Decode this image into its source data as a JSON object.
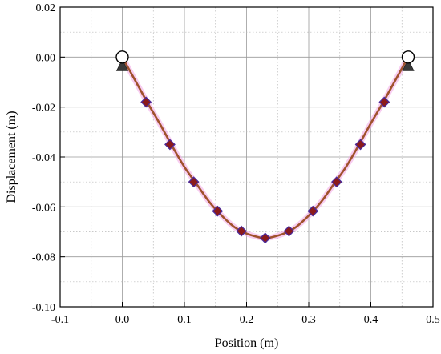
{
  "chart_data": {
    "type": "line",
    "title": "",
    "xlabel": "Position (m)",
    "ylabel": "Displacement (m)",
    "xlim": [
      -0.1,
      0.5
    ],
    "ylim": [
      -0.1,
      0.02
    ],
    "xticks": [
      -0.1,
      0.0,
      0.1,
      0.2,
      0.3,
      0.4,
      0.5
    ],
    "xtick_labels": [
      "-0.1",
      "0.0",
      "0.1",
      "0.2",
      "0.3",
      "0.4",
      "0.5"
    ],
    "yticks": [
      0.02,
      0.0,
      -0.02,
      -0.04,
      -0.06,
      -0.08,
      -0.1
    ],
    "ytick_labels": [
      "0.02",
      "0.00",
      "-0.02",
      "-0.04",
      "-0.06",
      "-0.08",
      "-0.10"
    ],
    "grid": true,
    "legend": "none",
    "series": [
      {
        "style": "curve",
        "color": "#a0522d",
        "x": [
          0.0,
          0.02,
          0.04,
          0.06,
          0.08,
          0.1,
          0.12,
          0.14,
          0.16,
          0.18,
          0.2,
          0.22,
          0.23,
          0.24,
          0.26,
          0.28,
          0.3,
          0.32,
          0.34,
          0.36,
          0.38,
          0.4,
          0.42,
          0.44,
          0.46
        ],
        "y": [
          0.0,
          -0.009,
          -0.018,
          -0.0265,
          -0.0355,
          -0.044,
          -0.051,
          -0.058,
          -0.0635,
          -0.068,
          -0.0707,
          -0.0722,
          -0.0725,
          -0.0722,
          -0.0707,
          -0.068,
          -0.0635,
          -0.058,
          -0.051,
          -0.044,
          -0.0355,
          -0.0265,
          -0.018,
          -0.009,
          0.0
        ]
      },
      {
        "style": "markers",
        "marker": "diamond",
        "color": "#8b1a1a",
        "edge_color": "#4b2a9a",
        "x": [
          0.0383,
          0.0767,
          0.115,
          0.1533,
          0.1917,
          0.23,
          0.2683,
          0.3067,
          0.345,
          0.3833,
          0.4217
        ],
        "y": [
          -0.018,
          -0.035,
          -0.05,
          -0.0617,
          -0.0697,
          -0.0725,
          -0.0697,
          -0.0617,
          -0.05,
          -0.035,
          -0.018
        ]
      }
    ],
    "supports": [
      {
        "x": 0.0,
        "y": 0.0,
        "symbol": "pin-support"
      },
      {
        "x": 0.46,
        "y": 0.0,
        "symbol": "pin-support"
      }
    ]
  }
}
